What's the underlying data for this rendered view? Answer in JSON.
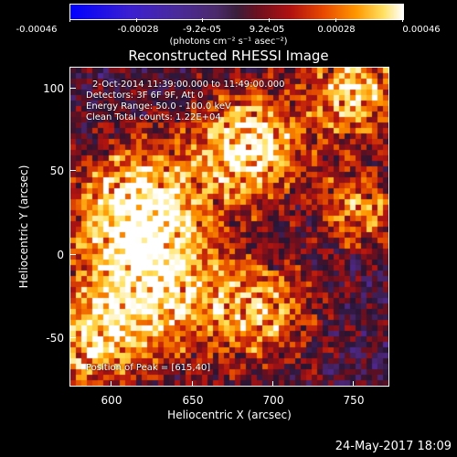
{
  "colorbar": {
    "ticks": [
      "-0.00046",
      "-0.00028",
      "-9.2e-05",
      "9.2e-05",
      "0.00028",
      "0.00046"
    ],
    "units": "(photons cm⁻² s⁻¹ asec⁻²)"
  },
  "title": "Reconstructed RHESSI Image",
  "info": {
    "time": "2-Oct-2014 11:39:00.000 to 11:49:00.000",
    "detectors": "Detectors: 3F 6F 9F, Att 0",
    "energy": "Energy Range: 50.0 - 100.0 keV",
    "method": "Clean     Total counts: 1.22E+04",
    "peak": "Position of Peak = [615,40]"
  },
  "axes": {
    "xlabel": "Heliocentric X (arcsec)",
    "ylabel": "Heliocentric Y (arcsec)",
    "xticks": [
      "600",
      "650",
      "700",
      "750"
    ],
    "yticks": [
      "100",
      "50",
      "0",
      "-50"
    ]
  },
  "timestamp": "24-May-2017 18:09"
}
